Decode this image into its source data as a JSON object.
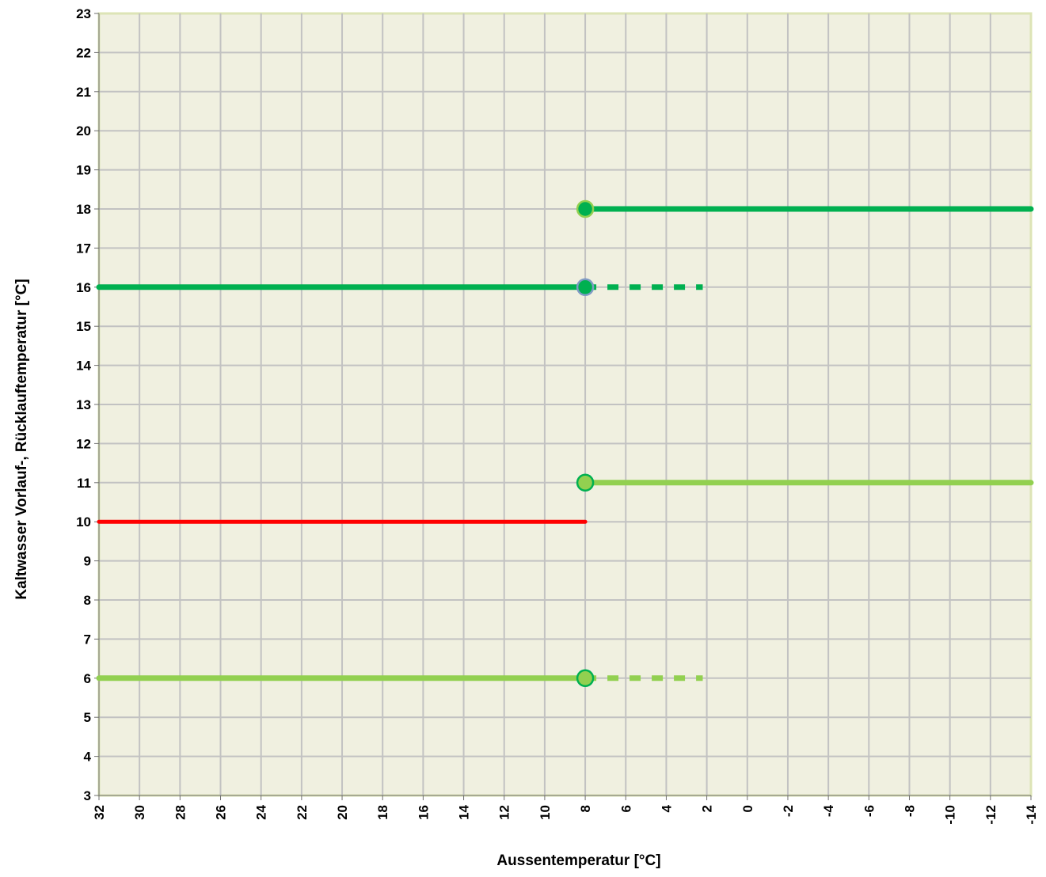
{
  "chart_data": {
    "type": "line",
    "xlabel": "Aussentemperatur [°C]",
    "ylabel": "Kaltwasser Vorlauf-, Rücklauftemperatur [°C]",
    "xlim": [
      32,
      -14
    ],
    "ylim": [
      3,
      23
    ],
    "x_ticks": [
      "32",
      "30",
      "28",
      "26",
      "24",
      "22",
      "20",
      "18",
      "16",
      "14",
      "12",
      "10",
      "8",
      "6",
      "4",
      "2",
      "0",
      "-2",
      "-4",
      "-6",
      "-8",
      "-10",
      "-12",
      "-14"
    ],
    "y_ticks": [
      "3",
      "4",
      "5",
      "6",
      "7",
      "8",
      "9",
      "10",
      "11",
      "12",
      "13",
      "14",
      "15",
      "16",
      "17",
      "18",
      "19",
      "20",
      "21",
      "22",
      "23"
    ],
    "grid": true,
    "series": [
      {
        "points": [
          [
            8,
            18
          ],
          [
            -14,
            18
          ]
        ],
        "style": "solid",
        "color": "#00b050",
        "marker": "start"
      },
      {
        "points": [
          [
            32,
            16
          ],
          [
            8,
            16
          ]
        ],
        "style": "solid",
        "color": "#00b050",
        "marker": "end"
      },
      {
        "points": [
          [
            8,
            16
          ],
          [
            2.2,
            16
          ]
        ],
        "style": "dashed",
        "color": "#00b050"
      },
      {
        "points": [
          [
            8,
            11
          ],
          [
            -14,
            11
          ]
        ],
        "style": "solid",
        "color": "#92d050",
        "marker": "start"
      },
      {
        "points": [
          [
            32,
            10
          ],
          [
            8,
            10
          ]
        ],
        "style": "solid",
        "color": "#ff0000"
      },
      {
        "points": [
          [
            32,
            6
          ],
          [
            8,
            6
          ]
        ],
        "style": "solid",
        "color": "#92d050",
        "marker": "end"
      },
      {
        "points": [
          [
            8,
            6
          ],
          [
            2.2,
            6
          ]
        ],
        "style": "dashed",
        "color": "#92d050"
      }
    ]
  }
}
